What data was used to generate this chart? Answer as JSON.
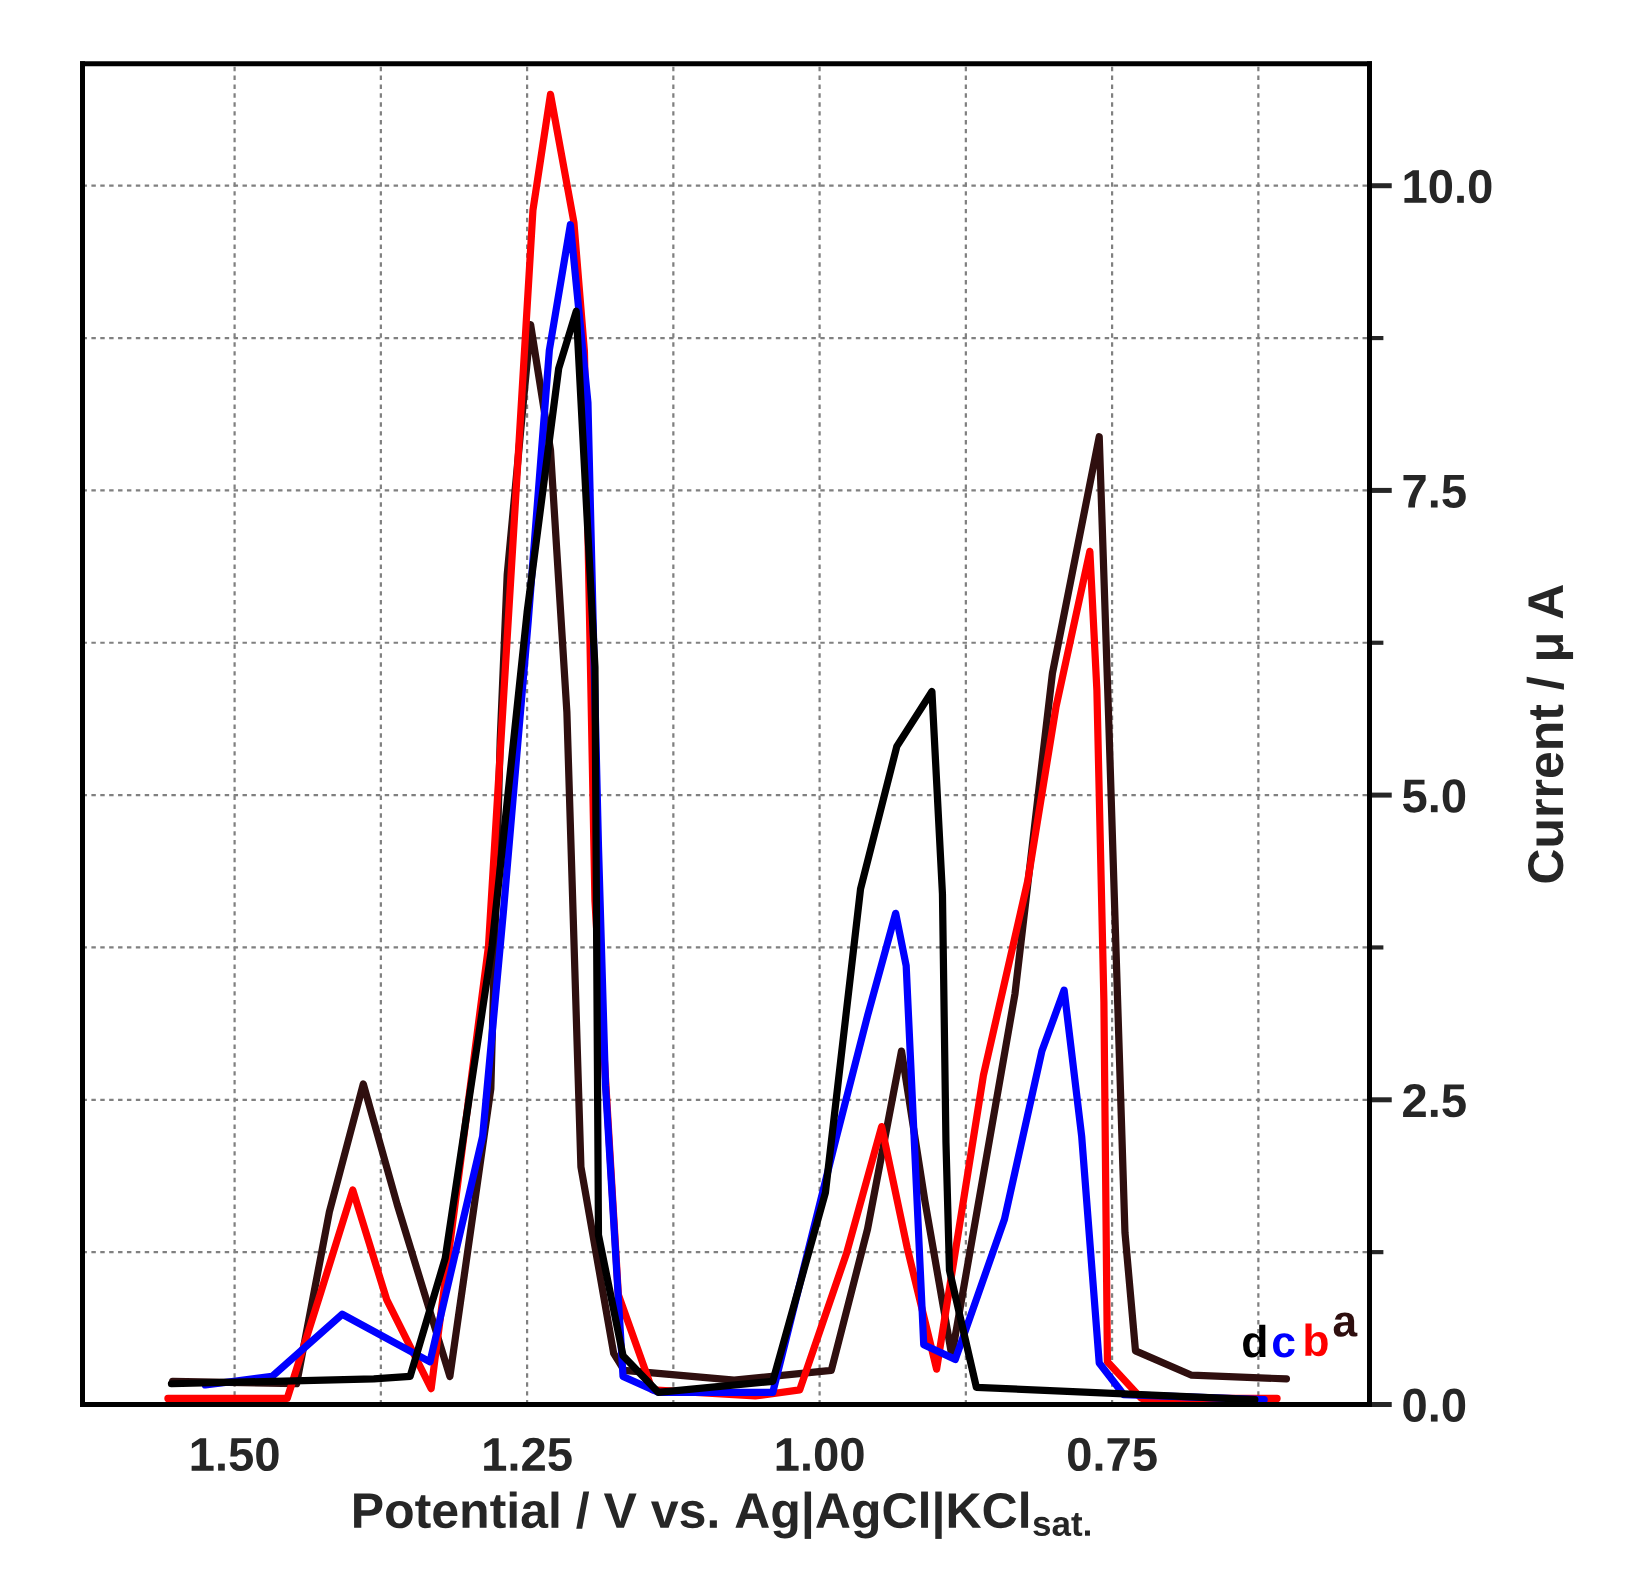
{
  "chart_data": {
    "type": "line",
    "xlabel": "Potential / V vs. Ag|AgCl|KCl$_{sat.}$",
    "ylabel": "Current / μ A",
    "xlim": [
      1.63,
      0.53
    ],
    "xticks": [
      {
        "value": 1.5,
        "label": "1.50"
      },
      {
        "value": 1.375,
        "label": null
      },
      {
        "value": 1.25,
        "label": "1.25"
      },
      {
        "value": 1.125,
        "label": null
      },
      {
        "value": 1.0,
        "label": "1.00"
      },
      {
        "value": 0.875,
        "label": null
      },
      {
        "value": 0.75,
        "label": "0.75"
      },
      {
        "value": 0.625,
        "label": null
      }
    ],
    "ylim": [
      0,
      11
    ],
    "yticks": [
      {
        "value": 0,
        "label": "0.0"
      },
      {
        "value": 1.25,
        "label": null
      },
      {
        "value": 2.5,
        "label": "2.5"
      },
      {
        "value": 3.75,
        "label": null
      },
      {
        "value": 5,
        "label": "5.0"
      },
      {
        "value": 6.25,
        "label": null
      },
      {
        "value": 7.5,
        "label": "7.5"
      },
      {
        "value": 8.75,
        "label": null
      },
      {
        "value": 10,
        "label": "10.0"
      }
    ],
    "grid": true,
    "line_style": "solid",
    "series": [
      {
        "name": "a",
        "color": "#2f0f0f",
        "x": [
          1.553,
          1.447,
          1.419,
          1.39,
          1.361,
          1.316,
          1.281,
          1.273,
          1.267,
          1.247,
          1.23,
          1.216,
          1.204,
          1.176,
          1.167,
          1.073,
          0.99,
          0.959,
          0.93,
          0.91,
          0.887,
          0.833,
          0.801,
          0.761,
          0.753,
          0.739,
          0.73,
          0.682,
          0.601
        ],
        "values": [
          0.19,
          0.17,
          1.58,
          2.63,
          1.64,
          0.23,
          2.59,
          5.45,
          6.81,
          8.86,
          7.83,
          5.68,
          1.95,
          0.42,
          0.28,
          0.2,
          0.28,
          1.44,
          2.9,
          1.67,
          0.4,
          3.37,
          6.0,
          7.94,
          5.65,
          1.41,
          0.44,
          0.24,
          0.21
        ]
      },
      {
        "name": "b",
        "color": "#ff0000",
        "x": [
          1.557,
          1.455,
          1.426,
          1.399,
          1.37,
          1.332,
          1.283,
          1.259,
          1.245,
          1.23,
          1.21,
          1.201,
          1.192,
          1.172,
          1.143,
          1.055,
          1.017,
          0.977,
          0.947,
          0.925,
          0.9,
          0.86,
          0.822,
          0.798,
          0.769,
          0.763,
          0.757,
          0.754,
          0.725,
          0.609
        ],
        "values": [
          0.05,
          0.05,
          0.93,
          1.76,
          0.86,
          0.13,
          3.76,
          7.56,
          9.8,
          10.75,
          9.7,
          8.64,
          4.13,
          0.9,
          0.12,
          0.07,
          0.12,
          1.24,
          2.28,
          1.28,
          0.29,
          2.7,
          4.3,
          5.72,
          7.0,
          5.86,
          3.3,
          0.35,
          0.05,
          0.05
        ]
      },
      {
        "name": "c",
        "color": "#0000ff",
        "x": [
          1.525,
          1.468,
          1.408,
          1.333,
          1.288,
          1.27,
          1.249,
          1.231,
          1.213,
          1.198,
          1.189,
          1.183,
          1.168,
          1.138,
          1.04,
          0.986,
          0.959,
          0.935,
          0.926,
          0.911,
          0.884,
          0.842,
          0.81,
          0.791,
          0.776,
          0.761,
          0.74,
          0.62
        ],
        "values": [
          0.16,
          0.23,
          0.74,
          0.35,
          2.2,
          4.07,
          6.43,
          8.65,
          9.68,
          8.22,
          4.58,
          2.62,
          0.23,
          0.1,
          0.1,
          2.18,
          3.19,
          4.03,
          3.6,
          0.49,
          0.37,
          1.52,
          2.9,
          3.4,
          2.2,
          0.34,
          0.08,
          0.04
        ]
      },
      {
        "name": "d",
        "color": "#000000",
        "x": [
          1.554,
          1.381,
          1.35,
          1.32,
          1.28,
          1.25,
          1.223,
          1.208,
          1.192,
          1.189,
          1.168,
          1.138,
          1.04,
          0.995,
          0.965,
          0.934,
          0.904,
          0.895,
          0.892,
          0.889,
          0.866,
          0.628
        ],
        "values": [
          0.17,
          0.21,
          0.23,
          1.2,
          3.76,
          6.5,
          8.5,
          8.97,
          6.05,
          1.39,
          0.4,
          0.1,
          0.19,
          1.74,
          4.23,
          5.4,
          5.85,
          4.19,
          2.15,
          1.1,
          0.14,
          0.04
        ]
      }
    ]
  }
}
